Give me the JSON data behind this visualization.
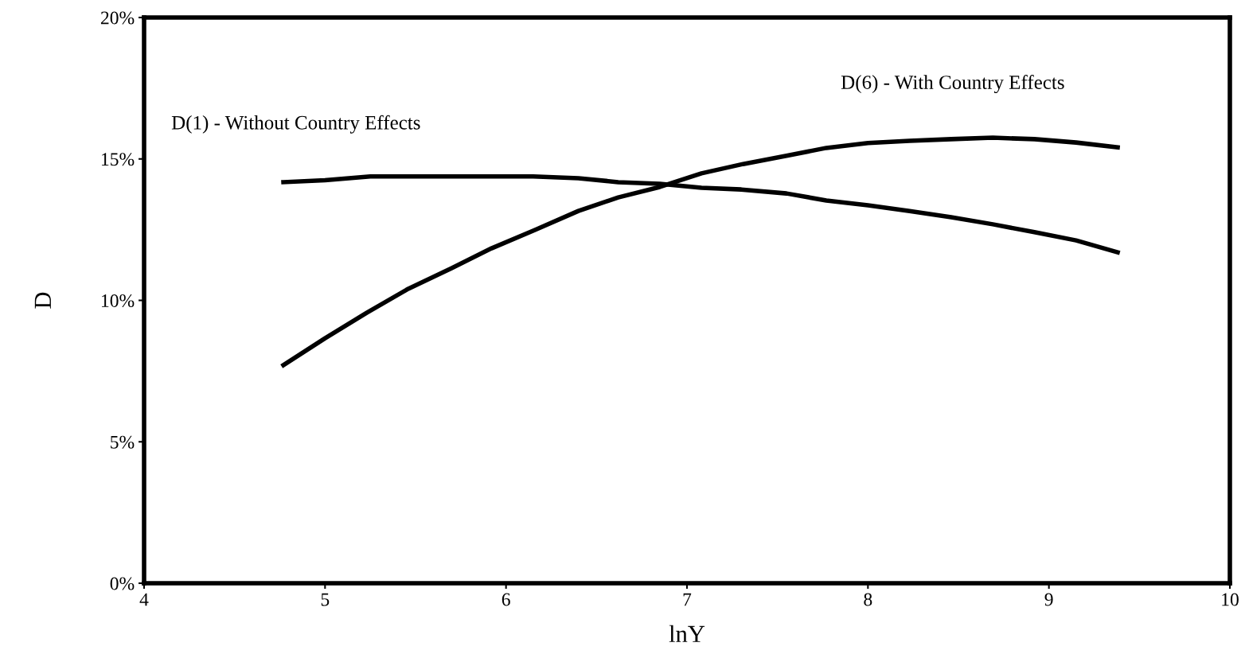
{
  "chart_data": {
    "type": "line",
    "xlabel": "lnY",
    "ylabel": "D",
    "xlim": [
      4,
      10
    ],
    "xticks": [
      4,
      5,
      6,
      7,
      8,
      9,
      10
    ],
    "ylim": [
      0,
      20
    ],
    "yticks": [
      {
        "value": 0,
        "label": "0%"
      },
      {
        "value": 5,
        "label": "5%"
      },
      {
        "value": 10,
        "label": "10%"
      },
      {
        "value": 15,
        "label": "15%"
      },
      {
        "value": 20,
        "label": "20%"
      }
    ],
    "grid": false,
    "legend": false,
    "marker": "none",
    "line_style": "solid",
    "series": [
      {
        "name": "D(1) - Without Country Effects",
        "color": "#000000",
        "x": [
          4.77,
          5.0,
          5.25,
          5.5,
          5.75,
          6.0,
          6.15,
          6.4,
          6.62,
          6.85,
          7.08,
          7.3,
          7.55,
          7.77,
          8.0,
          8.23,
          8.46,
          8.69,
          8.92,
          9.15,
          9.38
        ],
        "values": [
          14.18,
          14.25,
          14.38,
          14.38,
          14.38,
          14.38,
          14.38,
          14.32,
          14.18,
          14.12,
          13.98,
          13.92,
          13.78,
          13.53,
          13.36,
          13.16,
          12.94,
          12.69,
          12.41,
          12.12,
          11.7
        ]
      },
      {
        "name": "D(6) - With Country Effects",
        "color": "#000000",
        "x": [
          4.77,
          5.0,
          5.23,
          5.46,
          5.7,
          5.92,
          6.16,
          6.4,
          6.62,
          6.85,
          7.08,
          7.31,
          7.55,
          7.77,
          8.0,
          8.23,
          8.46,
          8.69,
          8.92,
          9.15,
          9.38
        ],
        "values": [
          7.71,
          8.66,
          9.56,
          10.41,
          11.14,
          11.84,
          12.49,
          13.16,
          13.64,
          14.01,
          14.49,
          14.82,
          15.11,
          15.39,
          15.56,
          15.64,
          15.7,
          15.75,
          15.7,
          15.58,
          15.41
        ]
      }
    ]
  }
}
